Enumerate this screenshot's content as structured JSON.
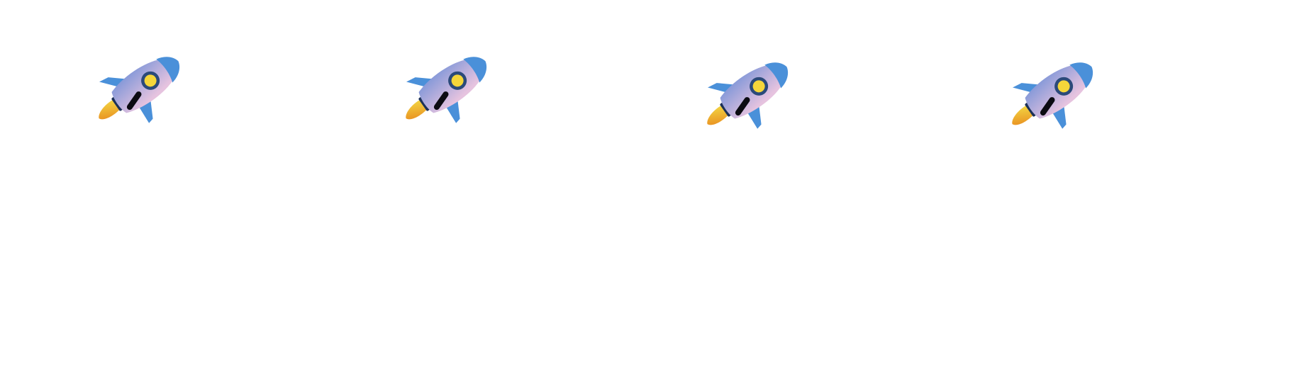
{
  "icon": "rocket-icon",
  "rocket_count": 4,
  "colors": {
    "background": "#ffffff",
    "fins": "#4a90d9",
    "nose": "#4a90d9",
    "body_top": "#7f96d8",
    "body_bottom": "#e6c3df",
    "porthole_ring": "#2b4a7a",
    "porthole_glass": "#f5d63a",
    "window_slot": "#0b0b12",
    "nozzle": "#1c3158",
    "flame_inner": "#f3d844",
    "flame_outer": "#e88a1e"
  }
}
